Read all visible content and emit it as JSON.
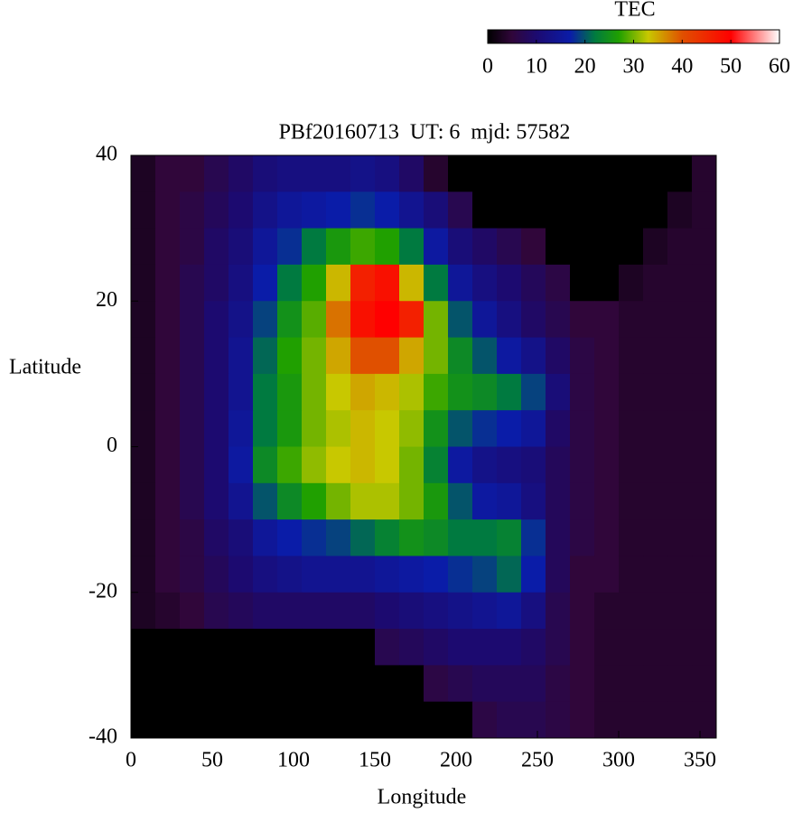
{
  "chart_data": {
    "type": "heatmap",
    "title": "PBf20160713  UT: 6  mjd: 57582",
    "xlabel": "Longitude",
    "ylabel": "Latitude",
    "colorbar_label": "TEC",
    "x": [
      7.5,
      22.5,
      37.5,
      52.5,
      67.5,
      82.5,
      97.5,
      112.5,
      127.5,
      142.5,
      157.5,
      172.5,
      187.5,
      202.5,
      217.5,
      232.5,
      247.5,
      262.5,
      277.5,
      292.5,
      307.5,
      322.5,
      337.5,
      352.5
    ],
    "y": [
      37.5,
      32.5,
      27.5,
      22.5,
      17.5,
      12.5,
      7.5,
      2.5,
      -2.5,
      -7.5,
      -12.5,
      -17.5,
      -22.5,
      -27.5,
      -32.5,
      -37.5
    ],
    "z": [
      [
        3,
        5,
        5,
        7,
        9,
        11,
        12,
        12,
        12,
        13,
        12,
        9,
        4,
        0,
        0,
        0,
        0,
        0,
        0,
        0,
        0,
        0,
        0,
        4
      ],
      [
        3,
        5,
        6,
        8,
        10,
        13,
        15,
        16,
        17,
        18,
        17,
        14,
        11,
        7,
        0,
        0,
        0,
        0,
        0,
        0,
        0,
        0,
        3,
        4
      ],
      [
        3,
        5,
        6,
        9,
        11,
        15,
        18,
        22,
        26,
        28,
        27,
        22,
        16,
        11,
        9,
        7,
        5,
        0,
        0,
        0,
        0,
        3,
        4,
        4
      ],
      [
        3,
        5,
        7,
        9,
        12,
        17,
        22,
        27,
        34,
        46,
        48,
        34,
        22,
        15,
        12,
        10,
        8,
        6,
        0,
        0,
        3,
        4,
        4,
        4
      ],
      [
        3,
        5,
        7,
        10,
        13,
        19,
        25,
        29,
        38,
        48,
        50,
        46,
        30,
        20,
        15,
        12,
        9,
        7,
        5,
        5,
        4,
        4,
        4,
        4
      ],
      [
        3,
        5,
        7,
        10,
        14,
        21,
        27,
        30,
        35,
        40,
        40,
        35,
        30,
        24,
        20,
        16,
        13,
        9,
        6,
        5,
        4,
        4,
        4,
        4
      ],
      [
        3,
        5,
        7,
        10,
        14,
        22,
        26,
        30,
        33,
        35,
        34,
        32,
        28,
        25,
        24,
        22,
        19,
        11,
        6,
        5,
        4,
        4,
        4,
        4
      ],
      [
        3,
        5,
        7,
        10,
        15,
        22,
        26,
        30,
        32,
        34,
        33,
        31,
        25,
        20,
        18,
        17,
        15,
        9,
        6,
        5,
        4,
        4,
        4,
        4
      ],
      [
        3,
        5,
        7,
        10,
        16,
        24,
        28,
        31,
        33,
        34,
        33,
        30,
        23,
        16,
        13,
        12,
        11,
        8,
        6,
        5,
        4,
        4,
        4,
        4
      ],
      [
        3,
        5,
        7,
        10,
        14,
        20,
        24,
        27,
        30,
        32,
        32,
        30,
        26,
        20,
        16,
        15,
        12,
        8,
        6,
        5,
        4,
        4,
        4,
        4
      ],
      [
        3,
        5,
        6,
        9,
        11,
        15,
        17,
        18,
        19,
        21,
        23,
        25,
        24,
        22,
        22,
        23,
        18,
        8,
        6,
        5,
        4,
        4,
        4,
        4
      ],
      [
        3,
        5,
        6,
        8,
        10,
        12,
        13,
        14,
        14,
        14,
        15,
        16,
        17,
        18,
        19,
        21,
        17,
        8,
        5,
        5,
        4,
        4,
        4,
        4
      ],
      [
        3,
        4,
        5,
        7,
        8,
        9,
        9,
        9,
        9,
        9,
        10,
        11,
        12,
        13,
        14,
        15,
        12,
        7,
        5,
        4,
        4,
        4,
        4,
        4
      ],
      [
        0,
        0,
        0,
        0,
        0,
        0,
        0,
        0,
        0,
        0,
        7,
        8,
        9,
        10,
        10,
        10,
        9,
        7,
        5,
        4,
        4,
        4,
        4,
        4
      ],
      [
        0,
        0,
        0,
        0,
        0,
        0,
        0,
        0,
        0,
        0,
        0,
        0,
        6,
        7,
        8,
        8,
        8,
        6,
        5,
        4,
        4,
        4,
        4,
        4
      ],
      [
        0,
        0,
        0,
        0,
        0,
        0,
        0,
        0,
        0,
        0,
        0,
        0,
        0,
        0,
        6,
        7,
        7,
        6,
        5,
        4,
        4,
        4,
        4,
        4
      ]
    ],
    "xlim": [
      0,
      360
    ],
    "xticks": [
      0,
      50,
      100,
      150,
      200,
      250,
      300,
      350
    ],
    "ylim": [
      -40,
      40
    ],
    "yticks": [
      -40,
      -20,
      0,
      20,
      40
    ],
    "zlim": [
      0,
      60
    ],
    "zticks": [
      0,
      10,
      20,
      30,
      40,
      50,
      60
    ],
    "colormap": [
      [
        0,
        "#000000"
      ],
      [
        5,
        "#30063a"
      ],
      [
        10,
        "#1c0a70"
      ],
      [
        17,
        "#0a1ca8"
      ],
      [
        22,
        "#007a40"
      ],
      [
        27,
        "#20a000"
      ],
      [
        33,
        "#c8c800"
      ],
      [
        40,
        "#e05000"
      ],
      [
        50,
        "#ff0000"
      ],
      [
        60,
        "#ffffff"
      ]
    ]
  }
}
